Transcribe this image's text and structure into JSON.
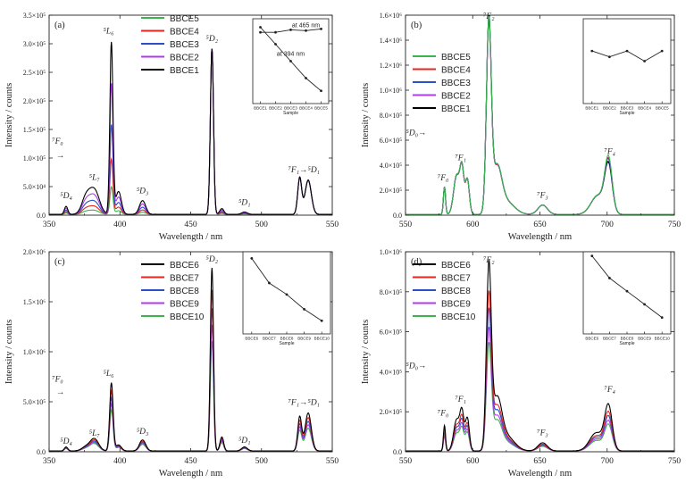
{
  "chart_data": [
    {
      "type": "line",
      "panel_label": "(a)",
      "xlabel": "Wavelength / nm",
      "ylabel": "Intensity / counts",
      "xlim": [
        350,
        550
      ],
      "ylim": [
        0,
        350000
      ],
      "xticks": [
        "350",
        "400",
        "450",
        "500",
        "550"
      ],
      "yticks": [
        "0.0",
        "5.0×10⁴",
        "1.0×10⁵",
        "1.5×10⁵",
        "2.0×10⁵",
        "2.5×10⁵",
        "3.0×10⁵",
        "3.5×10⁵"
      ],
      "legend": [
        "BBCE5",
        "BBCE4",
        "BBCE3",
        "BBCE2",
        "BBCE1"
      ],
      "legend_colors": [
        "#3cb44b",
        "#e6261f",
        "#2b4fc7",
        "#b23aee",
        "#000000"
      ],
      "series": [
        {
          "name": "BBCE1",
          "peak_scale": 1.0
        },
        {
          "name": "BBCE2",
          "peak_scale": 0.76
        },
        {
          "name": "BBCE3",
          "peak_scale": 0.52
        },
        {
          "name": "BBCE4",
          "peak_scale": 0.32
        },
        {
          "name": "BBCE5",
          "peak_scale": 0.16
        }
      ],
      "peaks": [
        {
          "x": 362,
          "y": 14000,
          "w": 1.2
        },
        {
          "x": 376,
          "y": 28000,
          "w": 3
        },
        {
          "x": 382,
          "y": 42000,
          "w": 3.5
        },
        {
          "x": 394,
          "y": 300000,
          "w": 1.1
        },
        {
          "x": 399,
          "y": 40000,
          "w": 2
        },
        {
          "x": 416,
          "y": 24000,
          "w": 2.2
        },
        {
          "x": 465,
          "y": 290000,
          "w": 1.1
        },
        {
          "x": 472,
          "y": 10000,
          "w": 1.5
        },
        {
          "x": 488,
          "y": 4000,
          "w": 2
        },
        {
          "x": 527,
          "y": 64000,
          "w": 1.4
        },
        {
          "x": 533,
          "y": 60000,
          "w": 2.2
        }
      ],
      "fixed_peaks": [
        465,
        527,
        533
      ],
      "annotations": [
        {
          "text": "⁵D₄",
          "x": 362,
          "y": 30000
        },
        {
          "text": "⁵L₇",
          "x": 382,
          "y": 62000
        },
        {
          "text": "⁵L₆",
          "x": 392,
          "y": 318000
        },
        {
          "text": "⁵D₃",
          "x": 416,
          "y": 38000
        },
        {
          "text": "⁵D₂",
          "x": 465,
          "y": 305000
        },
        {
          "text": "⁵D₁",
          "x": 488,
          "y": 18000
        },
        {
          "text": "⁷F₁→⁵D₁",
          "x": 530,
          "y": 75000
        },
        {
          "text": "⁷F₀",
          "x": 356,
          "y": 125000
        },
        {
          "text": "→",
          "x": 358,
          "y": 100000
        }
      ],
      "inset": {
        "xlabel": "Sample",
        "categories": [
          "BBCE1",
          "BBCE2",
          "BBCE3",
          "BBCE4",
          "BBCE5"
        ],
        "series": [
          {
            "name": "at 465 nm",
            "values": [
              0.84,
              0.84,
              0.87,
              0.86,
              0.88
            ]
          },
          {
            "name": "at 394 nm",
            "values": [
              0.9,
              0.7,
              0.5,
              0.3,
              0.15
            ]
          }
        ]
      }
    },
    {
      "type": "line",
      "panel_label": "(b)",
      "xlabel": "Wavelength / nm",
      "ylabel": "Intensity / counts",
      "xlim": [
        550,
        750
      ],
      "ylim": [
        0,
        1600000
      ],
      "xticks": [
        "550",
        "600",
        "650",
        "700",
        "750"
      ],
      "yticks": [
        "0.0",
        "2.0×10⁵",
        "4.0×10⁵",
        "6.0×10⁵",
        "8.0×10⁵",
        "1.0×10⁶",
        "1.2×10⁶",
        "1.4×10⁶",
        "1.6×10⁶"
      ],
      "legend": [
        "BBCE5",
        "BBCE4",
        "BBCE3",
        "BBCE2",
        "BBCE1"
      ],
      "legend_colors": [
        "#3cb44b",
        "#e6261f",
        "#2b4fc7",
        "#b23aee",
        "#000000"
      ],
      "series": [
        {
          "name": "BBCE1",
          "peak_scale": 1.0
        },
        {
          "name": "BBCE2",
          "peak_scale": 0.99
        },
        {
          "name": "BBCE3",
          "peak_scale": 1.0
        },
        {
          "name": "BBCE4",
          "peak_scale": 0.98
        },
        {
          "name": "BBCE5",
          "peak_scale": 1.0
        }
      ],
      "peaks": [
        {
          "x": 579,
          "y": 220000,
          "w": 0.8
        },
        {
          "x": 588,
          "y": 310000,
          "w": 2.2
        },
        {
          "x": 592,
          "y": 350000,
          "w": 1.5
        },
        {
          "x": 596,
          "y": 280000,
          "w": 1.5
        },
        {
          "x": 612,
          "y": 1500000,
          "w": 1.8
        },
        {
          "x": 618,
          "y": 350000,
          "w": 3.5
        },
        {
          "x": 625,
          "y": 100000,
          "w": 6
        },
        {
          "x": 652,
          "y": 75000,
          "w": 3.5
        },
        {
          "x": 693,
          "y": 150000,
          "w": 5
        },
        {
          "x": 701,
          "y": 380000,
          "w": 2.8
        }
      ],
      "series_extra": {
        "BBCE5": {
          "x": 701,
          "y": 50000,
          "w": 2.6
        },
        "BBCE4": {
          "x": 701,
          "y": 40000,
          "w": 2.6
        },
        "BBCE3": {
          "x": 701,
          "y": 25000,
          "w": 2.6
        }
      },
      "annotations": [
        {
          "text": "⁷F₀",
          "x": 578,
          "y": 280000
        },
        {
          "text": "⁷F₁",
          "x": 591,
          "y": 440000
        },
        {
          "text": "⁷F₂",
          "x": 612,
          "y": 1570000
        },
        {
          "text": "⁷F₃",
          "x": 652,
          "y": 140000
        },
        {
          "text": "⁷F₄",
          "x": 702,
          "y": 490000
        },
        {
          "text": "⁵D₀→",
          "x": 558,
          "y": 640000
        }
      ],
      "inset": {
        "xlabel": "Sample",
        "categories": [
          "BBCE1",
          "BBCE2",
          "BBCE3",
          "BBCE4",
          "BBCE5"
        ],
        "series": [
          {
            "name": "",
            "values": [
              0.62,
              0.55,
              0.62,
              0.5,
              0.62
            ]
          }
        ]
      }
    },
    {
      "type": "line",
      "panel_label": "(c)",
      "xlabel": "Wavelength / nm",
      "ylabel": "Intensity / counts",
      "xlim": [
        350,
        550
      ],
      "ylim": [
        0,
        2000000
      ],
      "xticks": [
        "350",
        "400",
        "450",
        "500",
        "550"
      ],
      "yticks": [
        "0.0",
        "5.0×10⁵",
        "1.0×10⁶",
        "1.5×10⁶",
        "2.0×10⁶"
      ],
      "legend": [
        "BBCE6",
        "BBCE7",
        "BBCE8",
        "BBCE9",
        "BBCE10"
      ],
      "legend_colors": [
        "#000000",
        "#e6261f",
        "#2b4fc7",
        "#b23aee",
        "#3cb44b"
      ],
      "series": [
        {
          "name": "BBCE6",
          "peak_scale": 1.0
        },
        {
          "name": "BBCE7",
          "peak_scale": 0.88
        },
        {
          "name": "BBCE8",
          "peak_scale": 0.78
        },
        {
          "name": "BBCE9",
          "peak_scale": 0.69
        },
        {
          "name": "BBCE10",
          "peak_scale": 0.6
        }
      ],
      "peaks": [
        {
          "x": 362,
          "y": 40000,
          "w": 1.2
        },
        {
          "x": 376,
          "y": 40000,
          "w": 3
        },
        {
          "x": 382,
          "y": 120000,
          "w": 3
        },
        {
          "x": 394,
          "y": 680000,
          "w": 1.2
        },
        {
          "x": 399,
          "y": 60000,
          "w": 2
        },
        {
          "x": 416,
          "y": 110000,
          "w": 2.2
        },
        {
          "x": 465,
          "y": 1830000,
          "w": 1.1
        },
        {
          "x": 472,
          "y": 140000,
          "w": 1.3
        },
        {
          "x": 488,
          "y": 40000,
          "w": 2
        },
        {
          "x": 527,
          "y": 340000,
          "w": 1.4
        },
        {
          "x": 533,
          "y": 380000,
          "w": 2.2
        }
      ],
      "annotations": [
        {
          "text": "⁵D₄",
          "x": 362,
          "y": 80000
        },
        {
          "text": "⁵L₇",
          "x": 382,
          "y": 160000
        },
        {
          "text": "⁵L₆",
          "x": 392,
          "y": 760000
        },
        {
          "text": "⁵D₃",
          "x": 416,
          "y": 180000
        },
        {
          "text": "⁵D₂",
          "x": 465,
          "y": 1900000
        },
        {
          "text": "⁵D₁",
          "x": 488,
          "y": 90000
        },
        {
          "text": "⁷F₁→⁵D₁",
          "x": 530,
          "y": 470000
        },
        {
          "text": "⁷F₀",
          "x": 356,
          "y": 700000
        },
        {
          "text": "→",
          "x": 358,
          "y": 570000
        }
      ],
      "inset": {
        "xlabel": "Sample",
        "categories": [
          "BBCE6",
          "BBCE7",
          "BBCE8",
          "BBCE9",
          "BBCE10"
        ],
        "series": [
          {
            "name": "",
            "values": [
              0.92,
              0.62,
              0.48,
              0.3,
              0.16
            ]
          }
        ]
      }
    },
    {
      "type": "line",
      "panel_label": "(d)",
      "xlabel": "Wavelength / nm",
      "ylabel": "Intensity / counts",
      "xlim": [
        550,
        750
      ],
      "ylim": [
        0,
        1100000
      ],
      "xticks": [
        "550",
        "600",
        "650",
        "700",
        "750"
      ],
      "yticks": [
        "0.0",
        "2.0×10⁵",
        "4.0×10⁵",
        "6.0×10⁵",
        "8.0×10⁵",
        "1.0×10⁶"
      ],
      "legend": [
        "BBCE6",
        "BBCE7",
        "BBCE8",
        "BBCE9",
        "BBCE10"
      ],
      "legend_colors": [
        "#000000",
        "#e6261f",
        "#2b4fc7",
        "#b23aee",
        "#3cb44b"
      ],
      "series": [
        {
          "name": "BBCE6",
          "peak_scale": 1.0
        },
        {
          "name": "BBCE7",
          "peak_scale": 0.84
        },
        {
          "name": "BBCE8",
          "peak_scale": 0.75
        },
        {
          "name": "BBCE9",
          "peak_scale": 0.65
        },
        {
          "name": "BBCE10",
          "peak_scale": 0.57
        }
      ],
      "peaks": [
        {
          "x": 579,
          "y": 140000,
          "w": 0.8
        },
        {
          "x": 588,
          "y": 170000,
          "w": 2.2
        },
        {
          "x": 592,
          "y": 200000,
          "w": 1.5
        },
        {
          "x": 596,
          "y": 180000,
          "w": 1.5
        },
        {
          "x": 612,
          "y": 980000,
          "w": 1.8
        },
        {
          "x": 618,
          "y": 260000,
          "w": 3.5
        },
        {
          "x": 625,
          "y": 80000,
          "w": 6
        },
        {
          "x": 652,
          "y": 45000,
          "w": 3.5
        },
        {
          "x": 692,
          "y": 100000,
          "w": 5
        },
        {
          "x": 701,
          "y": 240000,
          "w": 2.8
        }
      ],
      "annotations": [
        {
          "text": "⁷F₀",
          "x": 578,
          "y": 200000
        },
        {
          "text": "⁷F₁",
          "x": 591,
          "y": 275000
        },
        {
          "text": "⁷F₂",
          "x": 612,
          "y": 1040000
        },
        {
          "text": "⁷F₃",
          "x": 652,
          "y": 90000
        },
        {
          "text": "⁷F₄",
          "x": 702,
          "y": 330000
        },
        {
          "text": "⁵D₀→",
          "x": 558,
          "y": 460000
        }
      ],
      "inset": {
        "xlabel": "Sample",
        "categories": [
          "BBCE6",
          "BBCE7",
          "BBCE8",
          "BBCE9",
          "BBCE10"
        ],
        "series": [
          {
            "name": "",
            "values": [
              0.95,
              0.68,
              0.52,
              0.36,
              0.2
            ]
          }
        ]
      }
    }
  ]
}
